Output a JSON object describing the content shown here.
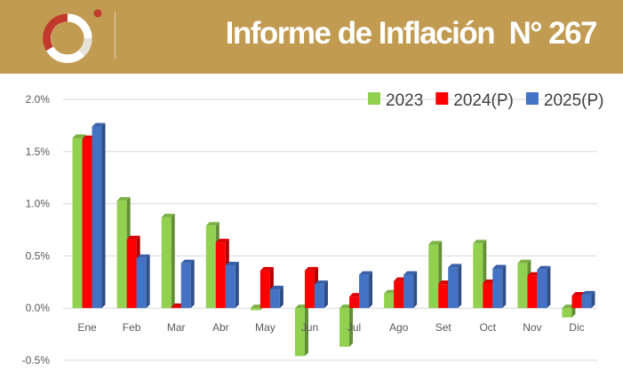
{
  "header": {
    "title": "Informe de Inflación  N° 267",
    "background_color": "#c29b52",
    "logo_icon": "bcrp-circle-logo-icon"
  },
  "chart_data": {
    "type": "bar",
    "title": "",
    "xlabel": "",
    "ylabel": "",
    "categories": [
      "Ene",
      "Feb",
      "Mar",
      "Abr",
      "May",
      "Jun",
      "Jul",
      "Ago",
      "Set",
      "Oct",
      "Nov",
      "Dic"
    ],
    "y_tick_labels": [
      "-0.5%",
      "0.0%",
      "0.5%",
      "1.0%",
      "1.5%",
      "2.0%"
    ],
    "ylim": [
      -0.5,
      2.0
    ],
    "y_unit": "%",
    "grid": true,
    "legend_position": "top-right",
    "series": [
      {
        "name": "2023",
        "color": "#92d050",
        "values": [
          1.63,
          1.03,
          0.87,
          0.79,
          -0.02,
          -0.46,
          -0.37,
          0.14,
          0.61,
          0.62,
          0.43,
          -0.09
        ]
      },
      {
        "name": "2024(P)",
        "color": "#ff0000",
        "values": [
          1.62,
          0.66,
          0.01,
          0.63,
          0.36,
          0.36,
          0.11,
          0.26,
          0.23,
          0.24,
          0.31,
          0.12
        ]
      },
      {
        "name": "2025(P)",
        "color": "#4472c4",
        "values": [
          1.74,
          0.48,
          0.43,
          0.41,
          0.18,
          0.23,
          0.32,
          0.32,
          0.39,
          0.38,
          0.37,
          0.13
        ]
      }
    ]
  }
}
